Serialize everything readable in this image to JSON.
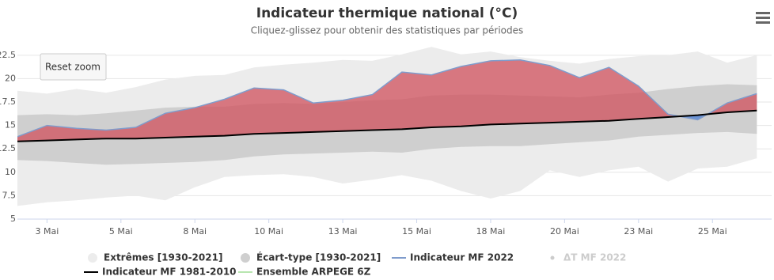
{
  "chart_data": {
    "type": "line",
    "title": "Indicateur thermique national (°C)",
    "subtitle": "Cliquez-glissez pour obtenir des statistiques par périodes",
    "reset_button": "Reset zoom",
    "x": [
      2,
      3,
      4,
      5,
      6,
      7,
      8,
      9,
      10,
      11,
      12,
      13,
      14,
      15,
      16,
      17,
      18,
      19,
      20,
      21,
      22,
      23,
      24,
      25,
      26,
      27
    ],
    "xlim": [
      2,
      27.5
    ],
    "xticks": [
      {
        "value": 3,
        "label": "3 Mai"
      },
      {
        "value": 5.5,
        "label": "5 Mai"
      },
      {
        "value": 8,
        "label": "8 Mai"
      },
      {
        "value": 10.5,
        "label": "10 Mai"
      },
      {
        "value": 13,
        "label": "13 Mai"
      },
      {
        "value": 15.5,
        "label": "15 Mai"
      },
      {
        "value": 18,
        "label": "18 Mai"
      },
      {
        "value": 20.5,
        "label": "20 Mai"
      },
      {
        "value": 23,
        "label": "23 Mai"
      },
      {
        "value": 25.5,
        "label": "25 Mai"
      }
    ],
    "ylim": [
      5,
      23.5
    ],
    "yticks": [
      5,
      7.5,
      10,
      12.5,
      15,
      17.5,
      20,
      22.5
    ],
    "grid": true,
    "series": [
      {
        "name": "Extrêmes [1930-2021]",
        "type": "arearange",
        "color": "#ececec",
        "low": [
          6.4,
          6.8,
          7.0,
          7.3,
          7.5,
          7.0,
          8.4,
          9.5,
          9.7,
          9.8,
          9.5,
          8.8,
          9.2,
          9.7,
          9.1,
          8.0,
          7.2,
          8.0,
          10.2,
          9.5,
          10.2,
          10.6,
          9.0,
          10.4,
          10.6,
          11.5
        ],
        "high": [
          18.7,
          18.4,
          18.9,
          18.5,
          19.1,
          19.9,
          20.3,
          20.4,
          21.2,
          21.5,
          21.7,
          22.0,
          21.9,
          22.6,
          23.4,
          22.6,
          22.9,
          22.3,
          21.9,
          21.6,
          22.1,
          22.4,
          22.5,
          22.9,
          21.7,
          22.5
        ]
      },
      {
        "name": "Écart-type [1930-2021]",
        "type": "arearange",
        "color": "#cfcfcf",
        "low": [
          11.3,
          11.2,
          11.0,
          10.8,
          10.9,
          11.0,
          11.1,
          11.3,
          11.7,
          11.9,
          12.0,
          12.1,
          12.2,
          12.1,
          12.5,
          12.7,
          12.8,
          12.8,
          13.0,
          13.2,
          13.4,
          13.8,
          14.0,
          14.2,
          14.3,
          14.1
        ],
        "high": [
          16.1,
          16.2,
          16.1,
          16.3,
          16.6,
          16.9,
          17.0,
          17.0,
          17.3,
          17.4,
          17.3,
          17.5,
          17.7,
          17.8,
          18.2,
          18.3,
          18.3,
          18.2,
          18.1,
          18.0,
          18.3,
          18.5,
          18.9,
          19.2,
          19.4,
          19.3
        ]
      },
      {
        "name": "Indicateur MF 2022",
        "type": "deviation",
        "color": "#7f9ccc",
        "fill_above": "#d0505c",
        "fill_below": "#4a7fd6",
        "values": [
          13.8,
          15.0,
          14.7,
          14.5,
          14.8,
          16.3,
          16.9,
          17.8,
          19.0,
          18.8,
          17.4,
          17.7,
          18.3,
          20.7,
          20.4,
          21.3,
          21.9,
          22.0,
          21.4,
          20.1,
          21.2,
          19.2,
          16.2,
          15.6,
          17.4,
          18.4
        ]
      },
      {
        "name": "ΔT MF 2022",
        "type": "hidden",
        "color": "#cccccc"
      },
      {
        "name": "Indicateur MF 1981-2010",
        "type": "line",
        "color": "#000000",
        "values": [
          13.3,
          13.4,
          13.5,
          13.6,
          13.6,
          13.7,
          13.8,
          13.9,
          14.1,
          14.2,
          14.3,
          14.4,
          14.5,
          14.6,
          14.8,
          14.9,
          15.1,
          15.2,
          15.3,
          15.4,
          15.5,
          15.7,
          15.9,
          16.1,
          16.4,
          16.6
        ]
      },
      {
        "name": "Ensemble ARPEGE 6Z",
        "type": "line",
        "color": "#b8e6b0"
      }
    ]
  }
}
